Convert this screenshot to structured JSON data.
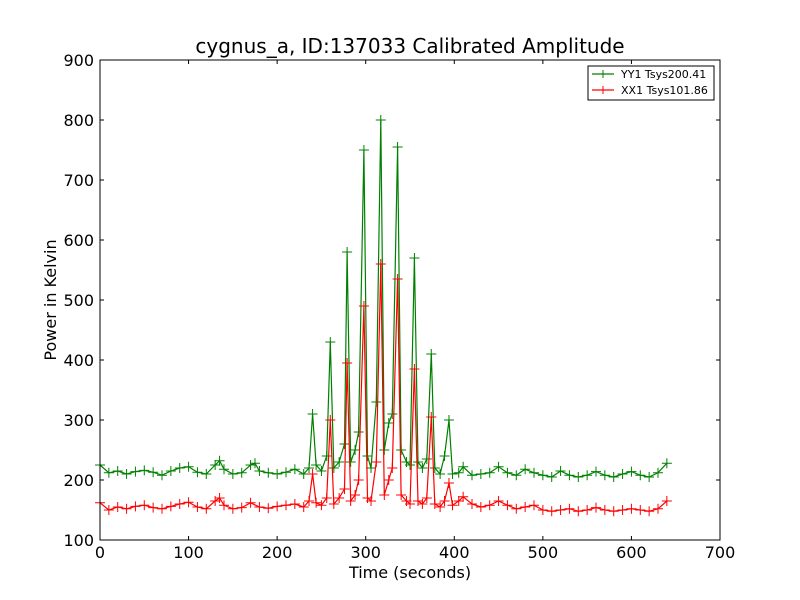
{
  "chart_data": {
    "type": "line",
    "title": "cygnus_a, ID:137033 Calibrated Amplitude",
    "xlabel": "Time (seconds)",
    "ylabel": "Power in Kelvin",
    "xlim": [
      0,
      700
    ],
    "ylim": [
      100,
      900
    ],
    "xticks": [
      0,
      100,
      200,
      300,
      400,
      500,
      600,
      700
    ],
    "yticks": [
      100,
      200,
      300,
      400,
      500,
      600,
      700,
      800,
      900
    ],
    "grid": false,
    "legend_position": "top-right",
    "marker": "plus",
    "series": [
      {
        "name": "YY1 Tsys200.41",
        "color": "#008000",
        "points": [
          [
            0,
            225
          ],
          [
            10,
            212
          ],
          [
            20,
            215
          ],
          [
            30,
            210
          ],
          [
            40,
            214
          ],
          [
            50,
            216
          ],
          [
            60,
            213
          ],
          [
            70,
            208
          ],
          [
            80,
            215
          ],
          [
            90,
            220
          ],
          [
            100,
            222
          ],
          [
            110,
            213
          ],
          [
            120,
            210
          ],
          [
            130,
            225
          ],
          [
            135,
            232
          ],
          [
            140,
            218
          ],
          [
            150,
            210
          ],
          [
            160,
            212
          ],
          [
            170,
            225
          ],
          [
            175,
            228
          ],
          [
            180,
            215
          ],
          [
            190,
            212
          ],
          [
            200,
            210
          ],
          [
            210,
            213
          ],
          [
            220,
            218
          ],
          [
            230,
            210
          ],
          [
            236,
            220
          ],
          [
            240,
            310
          ],
          [
            244,
            225
          ],
          [
            250,
            215
          ],
          [
            256,
            240
          ],
          [
            260,
            430
          ],
          [
            264,
            220
          ],
          [
            270,
            230
          ],
          [
            276,
            260
          ],
          [
            279,
            580
          ],
          [
            283,
            230
          ],
          [
            288,
            250
          ],
          [
            292,
            280
          ],
          [
            298,
            750
          ],
          [
            302,
            240
          ],
          [
            306,
            220
          ],
          [
            312,
            330
          ],
          [
            317,
            800
          ],
          [
            321,
            250
          ],
          [
            326,
            295
          ],
          [
            330,
            310
          ],
          [
            336,
            755
          ],
          [
            340,
            250
          ],
          [
            346,
            230
          ],
          [
            350,
            225
          ],
          [
            355,
            570
          ],
          [
            359,
            230
          ],
          [
            364,
            220
          ],
          [
            369,
            235
          ],
          [
            374,
            410
          ],
          [
            378,
            220
          ],
          [
            384,
            210
          ],
          [
            389,
            240
          ],
          [
            394,
            300
          ],
          [
            398,
            210
          ],
          [
            405,
            212
          ],
          [
            410,
            222
          ],
          [
            420,
            208
          ],
          [
            430,
            210
          ],
          [
            440,
            212
          ],
          [
            450,
            222
          ],
          [
            460,
            212
          ],
          [
            470,
            208
          ],
          [
            480,
            218
          ],
          [
            490,
            212
          ],
          [
            500,
            208
          ],
          [
            510,
            205
          ],
          [
            520,
            215
          ],
          [
            530,
            208
          ],
          [
            540,
            205
          ],
          [
            550,
            208
          ],
          [
            560,
            214
          ],
          [
            570,
            208
          ],
          [
            580,
            205
          ],
          [
            590,
            210
          ],
          [
            600,
            214
          ],
          [
            610,
            208
          ],
          [
            620,
            205
          ],
          [
            630,
            212
          ],
          [
            640,
            228
          ]
        ]
      },
      {
        "name": "XX1 Tsys101.86",
        "color": "#ff0000",
        "points": [
          [
            0,
            162
          ],
          [
            10,
            150
          ],
          [
            20,
            155
          ],
          [
            30,
            152
          ],
          [
            40,
            156
          ],
          [
            50,
            158
          ],
          [
            60,
            154
          ],
          [
            70,
            152
          ],
          [
            80,
            156
          ],
          [
            90,
            160
          ],
          [
            100,
            163
          ],
          [
            110,
            155
          ],
          [
            120,
            152
          ],
          [
            130,
            165
          ],
          [
            135,
            170
          ],
          [
            140,
            158
          ],
          [
            150,
            152
          ],
          [
            160,
            154
          ],
          [
            170,
            162
          ],
          [
            180,
            155
          ],
          [
            190,
            153
          ],
          [
            200,
            156
          ],
          [
            210,
            158
          ],
          [
            220,
            160
          ],
          [
            230,
            155
          ],
          [
            236,
            165
          ],
          [
            240,
            210
          ],
          [
            244,
            162
          ],
          [
            250,
            158
          ],
          [
            256,
            170
          ],
          [
            260,
            300
          ],
          [
            264,
            160
          ],
          [
            270,
            170
          ],
          [
            276,
            185
          ],
          [
            279,
            395
          ],
          [
            283,
            165
          ],
          [
            288,
            175
          ],
          [
            292,
            200
          ],
          [
            298,
            490
          ],
          [
            302,
            170
          ],
          [
            306,
            165
          ],
          [
            312,
            230
          ],
          [
            317,
            560
          ],
          [
            321,
            175
          ],
          [
            326,
            200
          ],
          [
            330,
            220
          ],
          [
            336,
            535
          ],
          [
            340,
            175
          ],
          [
            346,
            165
          ],
          [
            350,
            160
          ],
          [
            355,
            385
          ],
          [
            359,
            165
          ],
          [
            364,
            160
          ],
          [
            369,
            170
          ],
          [
            374,
            305
          ],
          [
            378,
            160
          ],
          [
            384,
            155
          ],
          [
            389,
            165
          ],
          [
            394,
            195
          ],
          [
            398,
            158
          ],
          [
            405,
            165
          ],
          [
            410,
            172
          ],
          [
            420,
            160
          ],
          [
            430,
            155
          ],
          [
            440,
            158
          ],
          [
            450,
            165
          ],
          [
            460,
            158
          ],
          [
            470,
            152
          ],
          [
            480,
            155
          ],
          [
            490,
            158
          ],
          [
            500,
            150
          ],
          [
            510,
            148
          ],
          [
            520,
            150
          ],
          [
            530,
            152
          ],
          [
            540,
            148
          ],
          [
            550,
            150
          ],
          [
            560,
            154
          ],
          [
            570,
            150
          ],
          [
            580,
            148
          ],
          [
            590,
            150
          ],
          [
            600,
            152
          ],
          [
            610,
            150
          ],
          [
            620,
            148
          ],
          [
            630,
            152
          ],
          [
            640,
            165
          ]
        ]
      }
    ]
  }
}
